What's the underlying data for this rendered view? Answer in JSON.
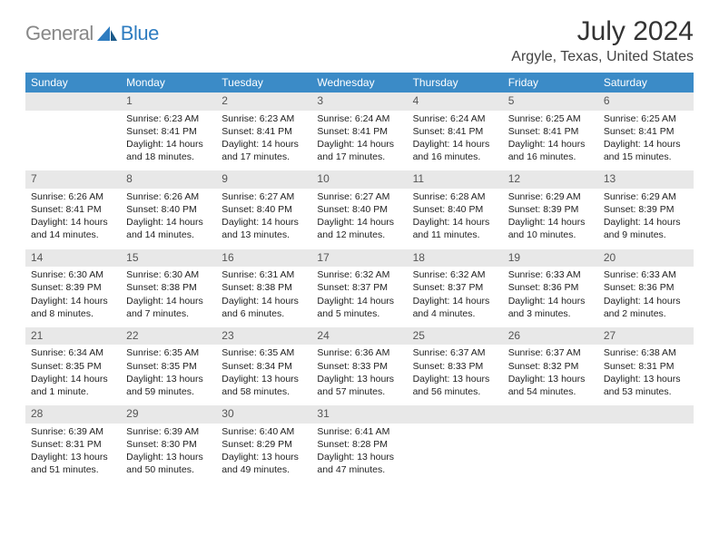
{
  "logo": {
    "text1": "General",
    "text2": "Blue",
    "color1": "#888888",
    "color2": "#2e7cc0"
  },
  "title": "July 2024",
  "location": "Argyle, Texas, United States",
  "header_bg": "#3b8bc7",
  "daynum_bg": "#e8e8e8",
  "border_color": "#2e7cc0",
  "weekdays": [
    "Sunday",
    "Monday",
    "Tuesday",
    "Wednesday",
    "Thursday",
    "Friday",
    "Saturday"
  ],
  "weeks": [
    [
      null,
      {
        "n": "1",
        "sunrise": "6:23 AM",
        "sunset": "8:41 PM",
        "daylight": "14 hours and 18 minutes."
      },
      {
        "n": "2",
        "sunrise": "6:23 AM",
        "sunset": "8:41 PM",
        "daylight": "14 hours and 17 minutes."
      },
      {
        "n": "3",
        "sunrise": "6:24 AM",
        "sunset": "8:41 PM",
        "daylight": "14 hours and 17 minutes."
      },
      {
        "n": "4",
        "sunrise": "6:24 AM",
        "sunset": "8:41 PM",
        "daylight": "14 hours and 16 minutes."
      },
      {
        "n": "5",
        "sunrise": "6:25 AM",
        "sunset": "8:41 PM",
        "daylight": "14 hours and 16 minutes."
      },
      {
        "n": "6",
        "sunrise": "6:25 AM",
        "sunset": "8:41 PM",
        "daylight": "14 hours and 15 minutes."
      }
    ],
    [
      {
        "n": "7",
        "sunrise": "6:26 AM",
        "sunset": "8:41 PM",
        "daylight": "14 hours and 14 minutes."
      },
      {
        "n": "8",
        "sunrise": "6:26 AM",
        "sunset": "8:40 PM",
        "daylight": "14 hours and 14 minutes."
      },
      {
        "n": "9",
        "sunrise": "6:27 AM",
        "sunset": "8:40 PM",
        "daylight": "14 hours and 13 minutes."
      },
      {
        "n": "10",
        "sunrise": "6:27 AM",
        "sunset": "8:40 PM",
        "daylight": "14 hours and 12 minutes."
      },
      {
        "n": "11",
        "sunrise": "6:28 AM",
        "sunset": "8:40 PM",
        "daylight": "14 hours and 11 minutes."
      },
      {
        "n": "12",
        "sunrise": "6:29 AM",
        "sunset": "8:39 PM",
        "daylight": "14 hours and 10 minutes."
      },
      {
        "n": "13",
        "sunrise": "6:29 AM",
        "sunset": "8:39 PM",
        "daylight": "14 hours and 9 minutes."
      }
    ],
    [
      {
        "n": "14",
        "sunrise": "6:30 AM",
        "sunset": "8:39 PM",
        "daylight": "14 hours and 8 minutes."
      },
      {
        "n": "15",
        "sunrise": "6:30 AM",
        "sunset": "8:38 PM",
        "daylight": "14 hours and 7 minutes."
      },
      {
        "n": "16",
        "sunrise": "6:31 AM",
        "sunset": "8:38 PM",
        "daylight": "14 hours and 6 minutes."
      },
      {
        "n": "17",
        "sunrise": "6:32 AM",
        "sunset": "8:37 PM",
        "daylight": "14 hours and 5 minutes."
      },
      {
        "n": "18",
        "sunrise": "6:32 AM",
        "sunset": "8:37 PM",
        "daylight": "14 hours and 4 minutes."
      },
      {
        "n": "19",
        "sunrise": "6:33 AM",
        "sunset": "8:36 PM",
        "daylight": "14 hours and 3 minutes."
      },
      {
        "n": "20",
        "sunrise": "6:33 AM",
        "sunset": "8:36 PM",
        "daylight": "14 hours and 2 minutes."
      }
    ],
    [
      {
        "n": "21",
        "sunrise": "6:34 AM",
        "sunset": "8:35 PM",
        "daylight": "14 hours and 1 minute."
      },
      {
        "n": "22",
        "sunrise": "6:35 AM",
        "sunset": "8:35 PM",
        "daylight": "13 hours and 59 minutes."
      },
      {
        "n": "23",
        "sunrise": "6:35 AM",
        "sunset": "8:34 PM",
        "daylight": "13 hours and 58 minutes."
      },
      {
        "n": "24",
        "sunrise": "6:36 AM",
        "sunset": "8:33 PM",
        "daylight": "13 hours and 57 minutes."
      },
      {
        "n": "25",
        "sunrise": "6:37 AM",
        "sunset": "8:33 PM",
        "daylight": "13 hours and 56 minutes."
      },
      {
        "n": "26",
        "sunrise": "6:37 AM",
        "sunset": "8:32 PM",
        "daylight": "13 hours and 54 minutes."
      },
      {
        "n": "27",
        "sunrise": "6:38 AM",
        "sunset": "8:31 PM",
        "daylight": "13 hours and 53 minutes."
      }
    ],
    [
      {
        "n": "28",
        "sunrise": "6:39 AM",
        "sunset": "8:31 PM",
        "daylight": "13 hours and 51 minutes."
      },
      {
        "n": "29",
        "sunrise": "6:39 AM",
        "sunset": "8:30 PM",
        "daylight": "13 hours and 50 minutes."
      },
      {
        "n": "30",
        "sunrise": "6:40 AM",
        "sunset": "8:29 PM",
        "daylight": "13 hours and 49 minutes."
      },
      {
        "n": "31",
        "sunrise": "6:41 AM",
        "sunset": "8:28 PM",
        "daylight": "13 hours and 47 minutes."
      },
      null,
      null,
      null
    ]
  ],
  "labels": {
    "sunrise": "Sunrise: ",
    "sunset": "Sunset: ",
    "daylight": "Daylight: "
  }
}
